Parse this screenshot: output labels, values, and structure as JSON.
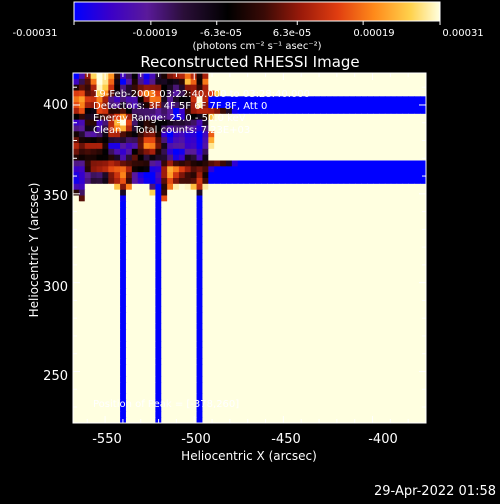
{
  "colorbar": {
    "ticks": [
      "-0.00031",
      "-0.00019",
      "-6.3e-05",
      "6.3e-05",
      "0.00019",
      "0.00031"
    ],
    "units": "(photons cm⁻² s⁻¹ asec⁻²)",
    "vmin": -0.00031,
    "vmax": 0.00031
  },
  "chart_data": {
    "type": "heatmap",
    "title": "Reconstructed RHESSI Image",
    "xlabel": "Heliocentric X (arcsec)",
    "ylabel": "Heliocentric Y (arcsec)",
    "xlim": [
      -568,
      -370
    ],
    "ylim": [
      221,
      418
    ],
    "x_ticks": [
      "-550",
      "-500",
      "-450",
      "-400"
    ],
    "y_ticks": [
      "250",
      "300",
      "350",
      "400"
    ],
    "annotations": [
      "19-Feb-2003 03:22:40.000 to 03:28:40.000",
      "Detectors: 3F 4F 5F 6F 7F 8F, Att 0",
      "Energy Range: 25.0 - 50.0 keV",
      "Clean    Total counts: 7.23E+03"
    ],
    "peak_label": "Position of Peak = [-378,260]",
    "peak_position": [
      -378,
      260
    ],
    "colormap": [
      "#0000ff",
      "#3b00c8",
      "#5a1a9a",
      "#2a0e38",
      "#000000",
      "#3a0a06",
      "#9a1a0a",
      "#e03d10",
      "#ff8a1a",
      "#ffd24d",
      "#ffffe0"
    ]
  },
  "footer": {
    "timestamp": "29-Apr-2022 01:58"
  }
}
